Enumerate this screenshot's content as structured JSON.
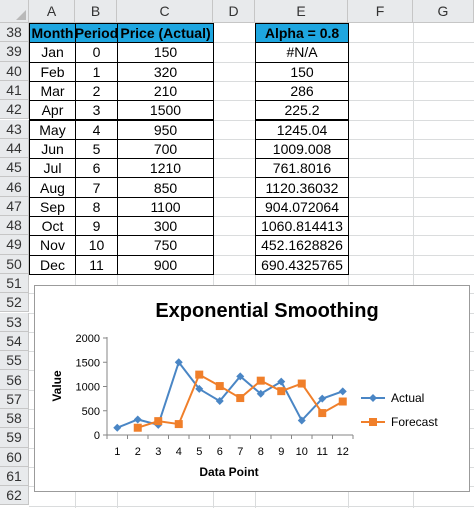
{
  "columns": [
    "A",
    "B",
    "C",
    "D",
    "E",
    "F",
    "G"
  ],
  "rows": [
    "38",
    "39",
    "40",
    "41",
    "42",
    "43",
    "44",
    "45",
    "46",
    "47",
    "48",
    "49",
    "50",
    "51",
    "52",
    "53",
    "54",
    "55",
    "56",
    "57",
    "58",
    "59",
    "60",
    "61",
    "62"
  ],
  "table": {
    "headers": [
      "Month",
      "Period",
      "Price (Actual)"
    ],
    "alpha_header": "Alpha = 0.8",
    "data": [
      {
        "month": "Jan",
        "period": "0",
        "price": "150",
        "forecast": "#N/A"
      },
      {
        "month": "Feb",
        "period": "1",
        "price": "320",
        "forecast": "150"
      },
      {
        "month": "Mar",
        "period": "2",
        "price": "210",
        "forecast": "286"
      },
      {
        "month": "Apr",
        "period": "3",
        "price": "1500",
        "forecast": "225.2"
      },
      {
        "month": "May",
        "period": "4",
        "price": "950",
        "forecast": "1245.04"
      },
      {
        "month": "Jun",
        "period": "5",
        "price": "700",
        "forecast": "1009.008"
      },
      {
        "month": "Jul",
        "period": "6",
        "price": "1210",
        "forecast": "761.8016"
      },
      {
        "month": "Aug",
        "period": "7",
        "price": "850",
        "forecast": "1120.36032"
      },
      {
        "month": "Sep",
        "period": "8",
        "price": "1100",
        "forecast": "904.072064"
      },
      {
        "month": "Oct",
        "period": "9",
        "price": "300",
        "forecast": "1060.814413"
      },
      {
        "month": "Nov",
        "period": "10",
        "price": "750",
        "forecast": "452.1628826"
      },
      {
        "month": "Dec",
        "period": "11",
        "price": "900",
        "forecast": "690.4325765"
      }
    ]
  },
  "chart_data": {
    "type": "line",
    "title": "Exponential Smoothing",
    "xlabel": "Data Point",
    "ylabel": "Value",
    "x": [
      1,
      2,
      3,
      4,
      5,
      6,
      7,
      8,
      9,
      10,
      11,
      12
    ],
    "ylim": [
      0,
      2000
    ],
    "yticks": [
      0,
      500,
      1000,
      1500,
      2000
    ],
    "legend_position": "right",
    "series": [
      {
        "name": "Actual",
        "color": "#4a86c5",
        "marker": "diamond",
        "values": [
          150,
          320,
          210,
          1500,
          950,
          700,
          1210,
          850,
          1100,
          300,
          750,
          900
        ]
      },
      {
        "name": "Forecast",
        "color": "#f07f2a",
        "marker": "square",
        "values": [
          null,
          150,
          286,
          225.2,
          1245.04,
          1009.008,
          761.8016,
          1120.36032,
          904.072064,
          1060.814413,
          452.1628826,
          690.4325765
        ]
      }
    ]
  }
}
